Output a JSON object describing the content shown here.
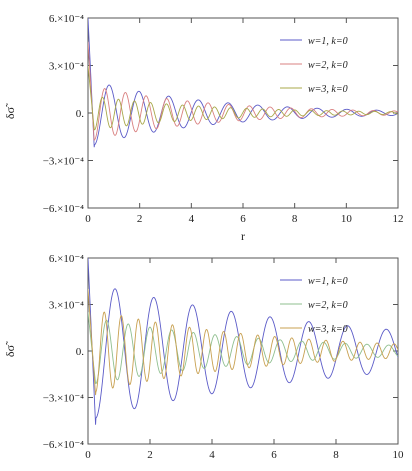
{
  "chart_data": [
    {
      "type": "line",
      "xlabel": "r",
      "ylabel": "δσ̃",
      "xlim": [
        0,
        12
      ],
      "ylim": [
        -0.0006,
        0.0006
      ],
      "x_ticks": [
        0,
        2,
        4,
        6,
        8,
        10,
        12
      ],
      "x_tick_labels": [
        "0",
        "2",
        "4",
        "6",
        "8",
        "10",
        "12"
      ],
      "y_ticks": [
        0.0006,
        0.0003,
        0,
        -0.0003,
        -0.0006
      ],
      "y_tick_labels": [
        "6.×10⁻⁴",
        "3.×10⁻⁴",
        "0.",
        "−3.×10⁻⁴",
        "−6.×10⁻⁴"
      ],
      "legend_position": "top-right",
      "series": [
        {
          "name": "w=1, k=0",
          "color": "#5b5bc8",
          "start": 0.0006,
          "trough": -0.00025,
          "amplitude": 0.00014,
          "period": 1.15,
          "decay": 0.22
        },
        {
          "name": "w=2, k=0",
          "color": "#d98080",
          "start": 0.00045,
          "trough": -0.0002,
          "amplitude": 0.00013,
          "period": 0.8,
          "decay": 0.22
        },
        {
          "name": "w=3, k=0",
          "color": "#a8a84a",
          "start": 0.0003,
          "trough": -0.00012,
          "amplitude": 9e-05,
          "period": 0.62,
          "decay": 0.22
        }
      ]
    },
    {
      "type": "line",
      "xlabel": "",
      "ylabel": "δσ̃",
      "xlim": [
        0,
        10
      ],
      "ylim": [
        -0.0006,
        0.0006
      ],
      "x_ticks": [
        0,
        2,
        4,
        6,
        8,
        10
      ],
      "x_tick_labels": [
        "0",
        "2",
        "4",
        "6",
        "8",
        "10"
      ],
      "y_ticks": [
        0.0006,
        0.0003,
        0,
        -0.0003,
        -0.0006
      ],
      "y_tick_labels": [
        "6.×10⁻⁴",
        "3.×10⁻⁴",
        "0.",
        "−3.×10⁻⁴",
        "−6.×10⁻⁴"
      ],
      "legend_position": "top-right",
      "series": [
        {
          "name": "w=1, k=0",
          "color": "#5b5bc8",
          "start": 0.0006,
          "trough": -0.0005,
          "amplitude": 0.00035,
          "period": 1.25,
          "decay": 0.12
        },
        {
          "name": "w=2, k=0",
          "color": "#8fbf8f",
          "start": 0.00025,
          "trough": -0.00022,
          "amplitude": 0.0002,
          "period": 0.7,
          "decay": 0.18
        },
        {
          "name": "w=3, k=0",
          "color": "#c8a050",
          "start": 0.0004,
          "trough": -0.0003,
          "amplitude": 0.00022,
          "period": 0.55,
          "decay": 0.18
        }
      ]
    }
  ]
}
